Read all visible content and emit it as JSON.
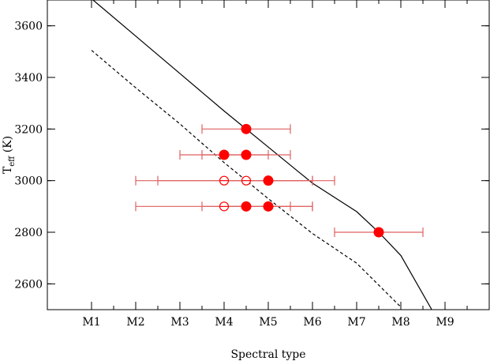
{
  "chart_data": {
    "type": "scatter",
    "xlabel": "Spectral type",
    "ylabel": "T",
    "ylabel_sub": "eff",
    "ylabel_unit": " (K)",
    "x_ticks": [
      {
        "value": 1,
        "label": "M1"
      },
      {
        "value": 2,
        "label": "M2"
      },
      {
        "value": 3,
        "label": "M3"
      },
      {
        "value": 4,
        "label": "M4"
      },
      {
        "value": 5,
        "label": "M5"
      },
      {
        "value": 6,
        "label": "M6"
      },
      {
        "value": 7,
        "label": "M7"
      },
      {
        "value": 8,
        "label": "M8"
      },
      {
        "value": 9,
        "label": "M9"
      }
    ],
    "y_ticks": [
      2600,
      2800,
      3000,
      3200,
      3400,
      3600
    ],
    "xlim": [
      0,
      10
    ],
    "ylim": [
      2500,
      3700
    ],
    "grid": false,
    "colors": {
      "points": "#ff0000",
      "errorbars": "#e06060",
      "lines": "#000000"
    },
    "lines": [
      {
        "style": "solid",
        "x": [
          1,
          2,
          3,
          4,
          5,
          6,
          7,
          7.5,
          8,
          8.7
        ],
        "y": [
          3705,
          3560,
          3415,
          3270,
          3130,
          2990,
          2880,
          2800,
          2710,
          2500
        ]
      },
      {
        "style": "dashed",
        "x": [
          1,
          2,
          3,
          4,
          5,
          6,
          7,
          8
        ],
        "y": [
          3505,
          3360,
          3220,
          3070,
          2930,
          2795,
          2680,
          2510
        ]
      }
    ],
    "points": [
      {
        "x": 4.5,
        "y": 3200,
        "xerr_low": 3.5,
        "xerr_high": 5.5,
        "filled": true
      },
      {
        "x": 4.0,
        "y": 3100,
        "xerr_low": 3.0,
        "xerr_high": 5.0,
        "filled": true
      },
      {
        "x": 4.5,
        "y": 3100,
        "xerr_low": 3.5,
        "xerr_high": 5.5,
        "filled": true
      },
      {
        "x": 4.0,
        "y": 3000,
        "xerr_low": 2.0,
        "xerr_high": 6.0,
        "filled": false
      },
      {
        "x": 4.5,
        "y": 3000,
        "xerr_low": 2.5,
        "xerr_high": 6.5,
        "filled": false
      },
      {
        "x": 5.0,
        "y": 3000,
        "xerr_low": 4.0,
        "xerr_high": 6.0,
        "filled": true
      },
      {
        "x": 4.0,
        "y": 2900,
        "xerr_low": 2.0,
        "xerr_high": 6.0,
        "filled": false
      },
      {
        "x": 4.5,
        "y": 2900,
        "xerr_low": 3.5,
        "xerr_high": 5.5,
        "filled": true
      },
      {
        "x": 5.0,
        "y": 2900,
        "xerr_low": 4.0,
        "xerr_high": 6.0,
        "filled": true
      },
      {
        "x": 7.5,
        "y": 2800,
        "xerr_low": 6.5,
        "xerr_high": 8.5,
        "filled": true
      }
    ]
  }
}
